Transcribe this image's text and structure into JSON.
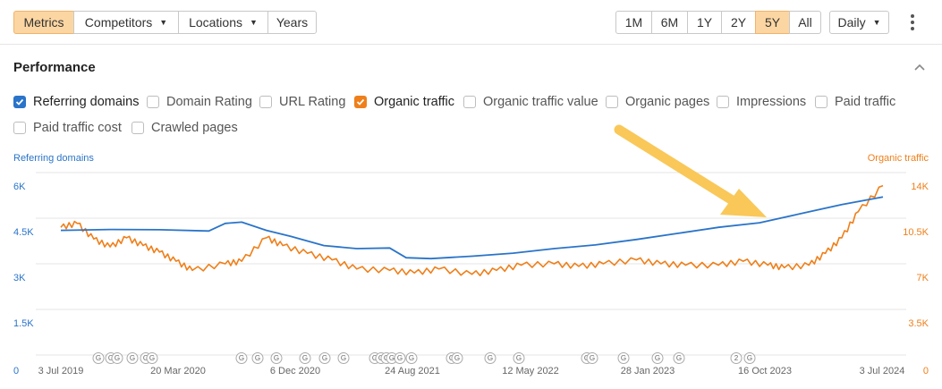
{
  "toolbar": {
    "left_buttons": [
      {
        "label": "Metrics",
        "active": true
      },
      {
        "label": "Competitors",
        "dropdown": true
      },
      {
        "label": "Locations",
        "dropdown": true
      },
      {
        "label": "Years"
      }
    ],
    "range_buttons": [
      "1M",
      "6M",
      "1Y",
      "2Y",
      "5Y",
      "All"
    ],
    "range_active": "5Y",
    "interval": "Daily"
  },
  "performance": {
    "title": "Performance",
    "metrics": [
      {
        "label": "Referring domains",
        "checked": true,
        "color": "#2a74c9"
      },
      {
        "label": "Domain Rating",
        "checked": false
      },
      {
        "label": "URL Rating",
        "checked": false
      },
      {
        "label": "Organic traffic",
        "checked": true,
        "color": "#ef7f1a"
      },
      {
        "label": "Organic traffic value",
        "checked": false
      },
      {
        "label": "Organic pages",
        "checked": false
      },
      {
        "label": "Impressions",
        "checked": false
      },
      {
        "label": "Paid traffic",
        "checked": false
      },
      {
        "label": "Paid traffic cost",
        "checked": false
      },
      {
        "label": "Crawled pages",
        "checked": false
      }
    ]
  },
  "chart_data": {
    "type": "line",
    "left_axis_label": "Referring domains",
    "right_axis_label": "Organic traffic",
    "left_ticks": [
      "6K",
      "4.5K",
      "3K",
      "1.5K",
      "0"
    ],
    "right_ticks": [
      "14K",
      "10.5K",
      "7K",
      "3.5K",
      "0"
    ],
    "x_tick_labels": [
      "3 Jul 2019",
      "20 Mar 2020",
      "6 Dec 2020",
      "24 Aug 2021",
      "12 May 2022",
      "28 Jan 2023",
      "16 Oct 2023",
      "3 Jul 2024"
    ],
    "series": [
      {
        "name": "Referring domains",
        "color": "#2a74c9",
        "x": [
          0,
          0.06,
          0.12,
          0.18,
          0.2,
          0.22,
          0.25,
          0.28,
          0.32,
          0.36,
          0.4,
          0.42,
          0.45,
          0.5,
          0.55,
          0.6,
          0.65,
          0.7,
          0.75,
          0.8,
          0.85,
          0.9,
          0.95,
          1.0
        ],
        "y": [
          4100,
          4130,
          4120,
          4080,
          4330,
          4370,
          4100,
          3900,
          3600,
          3500,
          3520,
          3200,
          3170,
          3250,
          3350,
          3500,
          3620,
          3800,
          4000,
          4200,
          4350,
          4650,
          4950,
          5200
        ]
      },
      {
        "name": "Organic traffic",
        "color": "#ef7f1a",
        "x": [
          0,
          0.02,
          0.04,
          0.06,
          0.08,
          0.1,
          0.12,
          0.14,
          0.16,
          0.2,
          0.22,
          0.25,
          0.27,
          0.3,
          0.33,
          0.36,
          0.4,
          0.43,
          0.46,
          0.5,
          0.53,
          0.56,
          0.6,
          0.63,
          0.66,
          0.7,
          0.73,
          0.76,
          0.8,
          0.83,
          0.86,
          0.88,
          0.91,
          0.93,
          0.95,
          0.97,
          1.0
        ],
        "y": [
          9800,
          10100,
          8900,
          8300,
          9000,
          8400,
          7900,
          7200,
          6500,
          7000,
          7200,
          9000,
          8400,
          7800,
          7300,
          6600,
          6500,
          6300,
          6600,
          6200,
          6500,
          6900,
          7000,
          6800,
          7000,
          7300,
          7000,
          6900,
          6900,
          7200,
          6900,
          6700,
          6900,
          7800,
          9000,
          11000,
          13000
        ]
      }
    ],
    "events": [
      {
        "label": "G"
      },
      {
        "label": "G"
      },
      {
        "label": "G"
      },
      {
        "label": "G"
      },
      {
        "label": "G"
      },
      {
        "label": "G"
      },
      {
        "label": "G"
      },
      {
        "label": "G"
      },
      {
        "label": "G"
      },
      {
        "label": "G"
      },
      {
        "label": "G"
      },
      {
        "label": "G"
      },
      {
        "label": "G"
      },
      {
        "label": "G"
      },
      {
        "label": "G"
      },
      {
        "label": "G"
      },
      {
        "label": "G"
      },
      {
        "label": "G"
      },
      {
        "label": "G"
      },
      {
        "label": "G"
      },
      {
        "label": "G"
      },
      {
        "label": "G"
      },
      {
        "label": "G"
      },
      {
        "label": "G"
      },
      {
        "label": "G"
      },
      {
        "label": "G"
      },
      {
        "label": "G"
      },
      {
        "label": "2"
      },
      {
        "label": "G"
      }
    ]
  }
}
